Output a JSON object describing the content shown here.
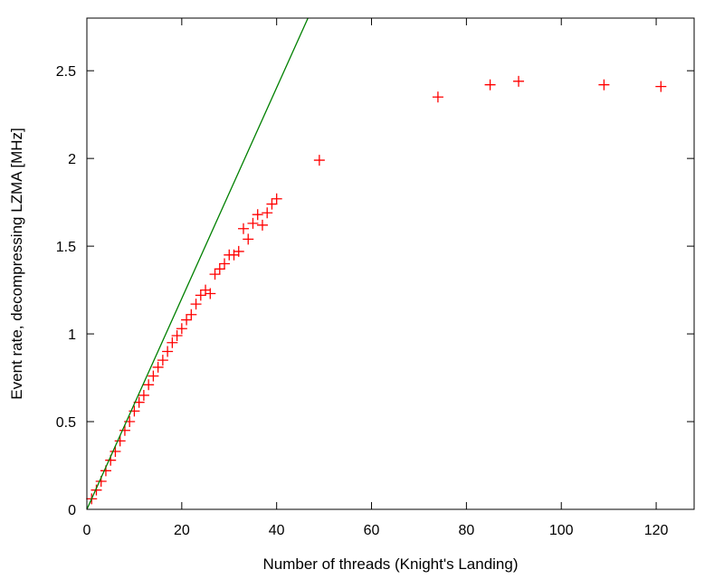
{
  "chart_data": {
    "type": "scatter",
    "xlabel": "Number of threads (Knight's Landing)",
    "ylabel": "Event rate, decompressing LZMA [MHz]",
    "xlim": [
      0,
      128
    ],
    "ylim": [
      0,
      2.8
    ],
    "x_ticks": [
      0,
      20,
      40,
      60,
      80,
      100,
      120
    ],
    "y_ticks": [
      0,
      0.5,
      1,
      1.5,
      2,
      2.5
    ],
    "x_tick_labels": [
      "0",
      "20",
      "40",
      "60",
      "80",
      "100",
      "120"
    ],
    "y_tick_labels": [
      "0",
      "0.5",
      "1",
      "1.5",
      "2",
      "2.5"
    ],
    "grid": false,
    "series": [
      {
        "marker": "plus",
        "color": "#ff0000",
        "points": [
          {
            "x": 1,
            "y": 0.06
          },
          {
            "x": 2,
            "y": 0.11
          },
          {
            "x": 3,
            "y": 0.16
          },
          {
            "x": 4,
            "y": 0.22
          },
          {
            "x": 5,
            "y": 0.28
          },
          {
            "x": 6,
            "y": 0.33
          },
          {
            "x": 7,
            "y": 0.39
          },
          {
            "x": 8,
            "y": 0.45
          },
          {
            "x": 9,
            "y": 0.5
          },
          {
            "x": 10,
            "y": 0.56
          },
          {
            "x": 11,
            "y": 0.61
          },
          {
            "x": 12,
            "y": 0.65
          },
          {
            "x": 13,
            "y": 0.71
          },
          {
            "x": 14,
            "y": 0.76
          },
          {
            "x": 15,
            "y": 0.81
          },
          {
            "x": 16,
            "y": 0.85
          },
          {
            "x": 17,
            "y": 0.9
          },
          {
            "x": 18,
            "y": 0.95
          },
          {
            "x": 19,
            "y": 0.99
          },
          {
            "x": 20,
            "y": 1.03
          },
          {
            "x": 21,
            "y": 1.08
          },
          {
            "x": 22,
            "y": 1.11
          },
          {
            "x": 23,
            "y": 1.17
          },
          {
            "x": 24,
            "y": 1.22
          },
          {
            "x": 25,
            "y": 1.25
          },
          {
            "x": 26,
            "y": 1.23
          },
          {
            "x": 27,
            "y": 1.34
          },
          {
            "x": 28,
            "y": 1.37
          },
          {
            "x": 29,
            "y": 1.4
          },
          {
            "x": 30,
            "y": 1.45
          },
          {
            "x": 31,
            "y": 1.45
          },
          {
            "x": 32,
            "y": 1.47
          },
          {
            "x": 33,
            "y": 1.6
          },
          {
            "x": 34,
            "y": 1.54
          },
          {
            "x": 35,
            "y": 1.63
          },
          {
            "x": 36,
            "y": 1.68
          },
          {
            "x": 37,
            "y": 1.62
          },
          {
            "x": 38,
            "y": 1.69
          },
          {
            "x": 39,
            "y": 1.74
          },
          {
            "x": 40,
            "y": 1.77
          },
          {
            "x": 49,
            "y": 1.99
          },
          {
            "x": 74,
            "y": 2.35
          },
          {
            "x": 85,
            "y": 2.42
          },
          {
            "x": 91,
            "y": 2.44
          },
          {
            "x": 109,
            "y": 2.42
          },
          {
            "x": 121,
            "y": 2.41
          }
        ]
      },
      {
        "type": "line",
        "color": "#008000",
        "points": [
          {
            "x": 0,
            "y": 0
          },
          {
            "x": 46.6,
            "y": 2.8
          }
        ]
      }
    ]
  }
}
